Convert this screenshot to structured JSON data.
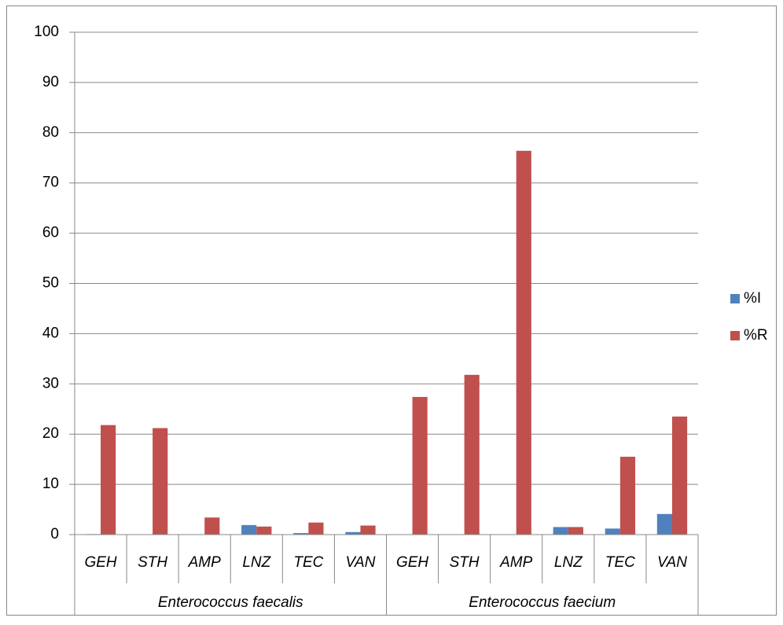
{
  "chart_data": {
    "type": "bar",
    "groups": [
      {
        "name": "Enterococcus faecalis",
        "categories": [
          "GEH",
          "STH",
          "AMP",
          "LNZ",
          "TEC",
          "VAN"
        ]
      },
      {
        "name": "Enterococcus faecium",
        "categories": [
          "GEH",
          "STH",
          "AMP",
          "LNZ",
          "TEC",
          "VAN"
        ]
      }
    ],
    "series": [
      {
        "name": "%I",
        "color": "#4f81bd",
        "values": [
          0.1,
          0,
          0,
          1.9,
          0.3,
          0.5,
          0,
          0,
          0,
          1.5,
          1.2,
          4.1
        ]
      },
      {
        "name": "%R",
        "color": "#c0504d",
        "values": [
          21.8,
          21.2,
          3.4,
          1.6,
          2.4,
          1.8,
          27.4,
          31.8,
          76.4,
          1.5,
          15.5,
          23.5
        ]
      }
    ],
    "ylim": [
      0,
      100
    ],
    "yticks": [
      0,
      10,
      20,
      30,
      40,
      50,
      60,
      70,
      80,
      90,
      100
    ],
    "grid": true,
    "legend": "right"
  }
}
